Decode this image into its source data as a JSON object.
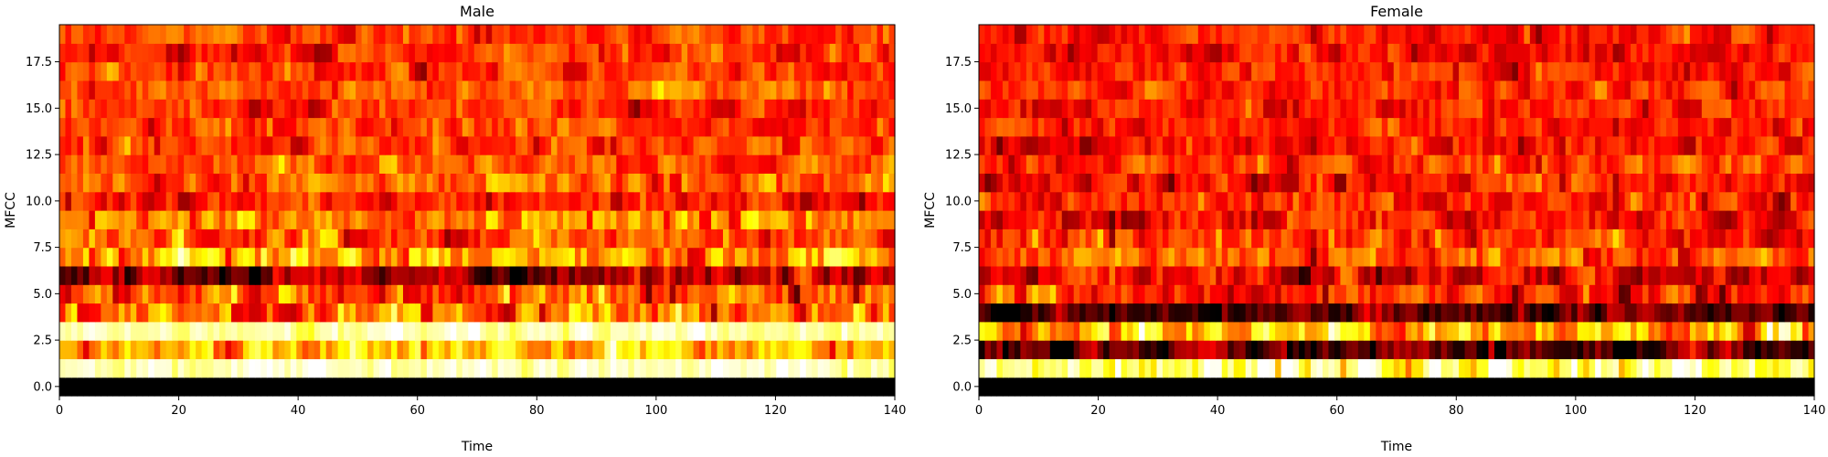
{
  "chart_data": [
    {
      "type": "heatmap",
      "title": "Male",
      "xlabel": "Time",
      "ylabel": "MFCC",
      "xlim": [
        0,
        140
      ],
      "ylim": [
        -0.5,
        19.5
      ],
      "xticks": [
        "0",
        "20",
        "40",
        "60",
        "80",
        "100",
        "120",
        "140"
      ],
      "yticks": [
        "0.0",
        "2.5",
        "5.0",
        "7.5",
        "10.0",
        "12.5",
        "15.0",
        "17.5"
      ],
      "colormap": "hot",
      "rows": 20,
      "cols": 141,
      "seed": 11,
      "row_profiles": [
        {
          "row": 0,
          "base": 0.0,
          "var": 0.0
        },
        {
          "row": 1,
          "base": 0.93,
          "var": 0.12
        },
        {
          "row": 2,
          "base": 0.62,
          "var": 0.28
        },
        {
          "row": 3,
          "base": 0.92,
          "var": 0.12
        },
        {
          "row": 4,
          "base": 0.52,
          "var": 0.32
        },
        {
          "row": 5,
          "base": 0.5,
          "var": 0.3
        },
        {
          "row": 6,
          "base": 0.22,
          "var": 0.25
        },
        {
          "row": 7,
          "base": 0.6,
          "var": 0.3
        },
        {
          "row": 8,
          "base": 0.46,
          "var": 0.25
        },
        {
          "row": 9,
          "base": 0.55,
          "var": 0.25
        },
        {
          "row": 10,
          "base": 0.4,
          "var": 0.2
        },
        {
          "row": 11,
          "base": 0.52,
          "var": 0.22
        },
        {
          "row": 12,
          "base": 0.5,
          "var": 0.2
        },
        {
          "row": 13,
          "base": 0.44,
          "var": 0.2
        },
        {
          "row": 14,
          "base": 0.45,
          "var": 0.18
        },
        {
          "row": 15,
          "base": 0.42,
          "var": 0.18
        },
        {
          "row": 16,
          "base": 0.5,
          "var": 0.18
        },
        {
          "row": 17,
          "base": 0.45,
          "var": 0.18
        },
        {
          "row": 18,
          "base": 0.42,
          "var": 0.18
        },
        {
          "row": 19,
          "base": 0.45,
          "var": 0.18
        }
      ]
    },
    {
      "type": "heatmap",
      "title": "Female",
      "xlabel": "Time",
      "ylabel": "MFCC",
      "xlim": [
        0,
        140
      ],
      "ylim": [
        -0.5,
        19.5
      ],
      "xticks": [
        "0",
        "20",
        "40",
        "60",
        "80",
        "100",
        "120",
        "140"
      ],
      "yticks": [
        "0.0",
        "2.5",
        "5.0",
        "7.5",
        "10.0",
        "12.5",
        "15.0",
        "17.5"
      ],
      "colormap": "hot",
      "rows": 20,
      "cols": 141,
      "seed": 29,
      "row_profiles": [
        {
          "row": 0,
          "base": 0.0,
          "var": 0.0
        },
        {
          "row": 1,
          "base": 0.85,
          "var": 0.3
        },
        {
          "row": 2,
          "base": 0.15,
          "var": 0.25
        },
        {
          "row": 3,
          "base": 0.65,
          "var": 0.35
        },
        {
          "row": 4,
          "base": 0.12,
          "var": 0.2
        },
        {
          "row": 5,
          "base": 0.38,
          "var": 0.25
        },
        {
          "row": 6,
          "base": 0.33,
          "var": 0.25
        },
        {
          "row": 7,
          "base": 0.48,
          "var": 0.28
        },
        {
          "row": 8,
          "base": 0.42,
          "var": 0.25
        },
        {
          "row": 9,
          "base": 0.38,
          "var": 0.22
        },
        {
          "row": 10,
          "base": 0.42,
          "var": 0.2
        },
        {
          "row": 11,
          "base": 0.38,
          "var": 0.2
        },
        {
          "row": 12,
          "base": 0.45,
          "var": 0.2
        },
        {
          "row": 13,
          "base": 0.36,
          "var": 0.2
        },
        {
          "row": 14,
          "base": 0.42,
          "var": 0.18
        },
        {
          "row": 15,
          "base": 0.4,
          "var": 0.18
        },
        {
          "row": 16,
          "base": 0.42,
          "var": 0.18
        },
        {
          "row": 17,
          "base": 0.4,
          "var": 0.18
        },
        {
          "row": 18,
          "base": 0.38,
          "var": 0.18
        },
        {
          "row": 19,
          "base": 0.4,
          "var": 0.18
        }
      ]
    }
  ]
}
